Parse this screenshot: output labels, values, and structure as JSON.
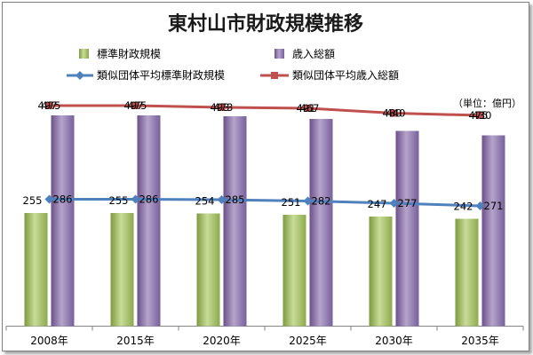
{
  "chart_data": {
    "type": "bar",
    "title": "東村山市財政規模推移",
    "unit_note": "（単位：億円）",
    "categories": [
      "2008年",
      "2015年",
      "2020年",
      "2025年",
      "2030年",
      "2035年"
    ],
    "ylim": [
      0,
      500
    ],
    "grid": false,
    "legend_position": "top",
    "series": [
      {
        "name": "標準財政規模",
        "kind": "bar",
        "color": "#9bbb59",
        "values": [
          255,
          255,
          254,
          251,
          247,
          242
        ]
      },
      {
        "name": "歳入総額",
        "kind": "bar",
        "color": "#8064a2",
        "values": [
          475,
          475,
          473,
          467,
          440,
          430
        ]
      },
      {
        "name": "類似団体平均標準財政規模",
        "kind": "line",
        "color": "#4f81bd",
        "values": [
          286,
          286,
          285,
          282,
          277,
          271
        ]
      },
      {
        "name": "類似団体平均歳入総額",
        "kind": "line",
        "color": "#c0504d",
        "values": [
          497,
          497,
          493,
          491,
          480,
          475
        ]
      }
    ],
    "labels": {
      "s0": [
        "255",
        "255",
        "254",
        "251",
        "247",
        "242"
      ],
      "s1": [
        "475",
        "475",
        "473",
        "467",
        "440",
        "430"
      ],
      "s2": [
        "286",
        "286",
        "285",
        "282",
        "277",
        "271"
      ],
      "s3": [
        "497",
        "497",
        "493",
        "491",
        "480",
        "475"
      ]
    }
  }
}
